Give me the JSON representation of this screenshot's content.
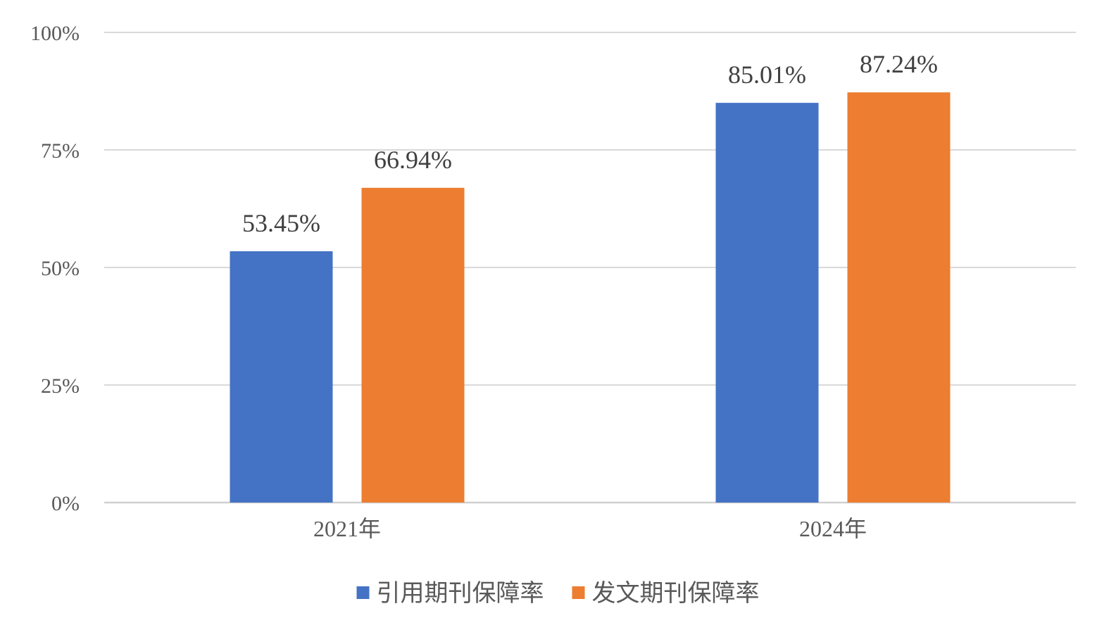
{
  "chart_data": {
    "type": "bar",
    "categories": [
      "2021年",
      "2024年"
    ],
    "series": [
      {
        "name": "引用期刊保障率",
        "values": [
          53.45,
          85.01
        ],
        "labels": [
          "53.45%",
          "85.01%"
        ],
        "color": "#4472C4"
      },
      {
        "name": "发文期刊保障率",
        "values": [
          66.94,
          87.24
        ],
        "labels": [
          "66.94%",
          "87.24%"
        ],
        "color": "#ED7D31"
      }
    ],
    "ylim": [
      0,
      100
    ],
    "yticks": [
      0,
      25,
      50,
      75,
      100
    ],
    "ytick_labels": [
      "0%",
      "25%",
      "50%",
      "75%",
      "100%"
    ],
    "grid": true,
    "legend_position": "bottom",
    "gridline_color": "#D9D9D9"
  }
}
